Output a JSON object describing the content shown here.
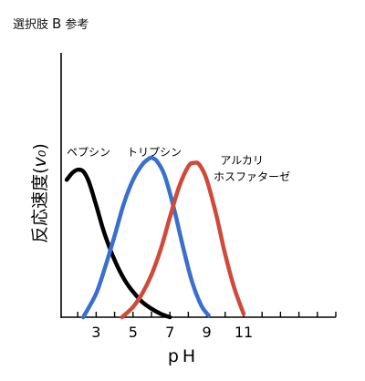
{
  "header": {
    "prefix": "選択肢",
    "letter": "B",
    "suffix": "参考"
  },
  "chart_data": {
    "type": "line",
    "xlabel": "pH",
    "ylabel": "反応速度",
    "ylabel_symbol": "v₀",
    "xlim": [
      1.1,
      16
    ],
    "ylim": [
      0,
      100
    ],
    "grid": false,
    "x_ticks": [
      3,
      5,
      7,
      9,
      11
    ],
    "x_tick_marks": [
      2,
      3,
      4,
      5,
      6,
      7,
      8,
      9,
      10,
      11,
      12,
      13,
      14,
      15,
      16
    ],
    "series": [
      {
        "name": "ペプシン",
        "color": "#000000",
        "x": [
          1.4,
          1.7,
          2.0,
          2.3,
          2.6,
          3.0,
          3.4,
          3.8,
          4.2,
          4.6,
          5.0,
          5.5,
          6.0,
          6.5,
          7.0
        ],
        "y": [
          81,
          85,
          87,
          86,
          80,
          66,
          51,
          39,
          29,
          21,
          15,
          9,
          5,
          2,
          0
        ]
      },
      {
        "name": "トリプシン",
        "color": "#3a6fd0",
        "x": [
          2.3,
          3.0,
          3.5,
          4.0,
          4.5,
          5.0,
          5.5,
          5.8,
          6.0,
          6.3,
          6.7,
          7.2,
          7.7,
          8.2,
          8.7,
          9.1
        ],
        "y": [
          0,
          14,
          30,
          48,
          67,
          81,
          90,
          93,
          94,
          92,
          84,
          65,
          42,
          21,
          7,
          1
        ]
      },
      {
        "name": "アルカリ\nホスファターゼ",
        "color": "#d04a3a",
        "x": [
          4.4,
          5.0,
          5.5,
          6.0,
          6.5,
          7.0,
          7.5,
          8.0,
          8.3,
          8.6,
          9.0,
          9.5,
          10.0,
          10.5,
          11.0
        ],
        "y": [
          0,
          6,
          14,
          25,
          40,
          59,
          77,
          89,
          91,
          90,
          81,
          61,
          37,
          17,
          2
        ]
      }
    ]
  }
}
